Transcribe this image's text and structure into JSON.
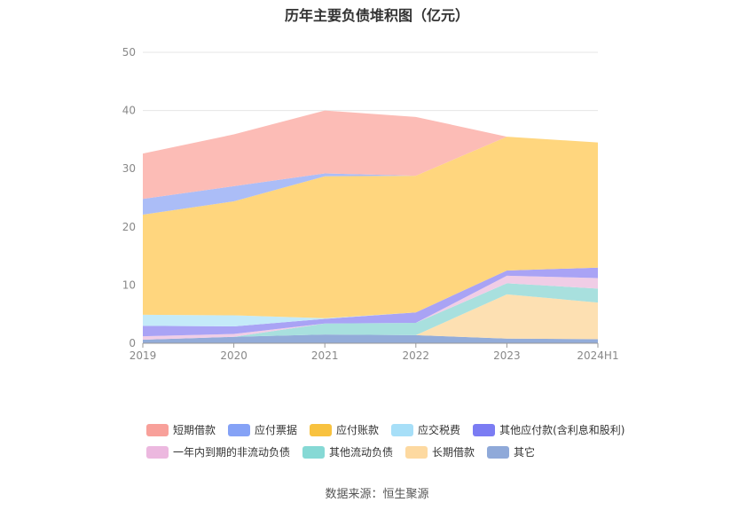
{
  "title": "历年主要负债堆积图（亿元）",
  "source": "数据来源：恒生聚源",
  "chart_data": {
    "type": "area",
    "stacked": true,
    "categories": [
      "2019",
      "2020",
      "2021",
      "2022",
      "2023",
      "2024H1"
    ],
    "yticks": [
      "0",
      "10",
      "20",
      "30",
      "40",
      "50"
    ],
    "ylim": [
      0,
      50
    ],
    "grid": true,
    "legend_position": "bottom",
    "series": [
      {
        "name": "其它",
        "color": "#93acd9",
        "values": [
          0.6,
          1.1,
          1.5,
          1.4,
          0.8,
          0.7
        ]
      },
      {
        "name": "长期借款",
        "color": "#fde0b2",
        "values": [
          0.0,
          0.0,
          0.0,
          0.0,
          7.6,
          6.3
        ]
      },
      {
        "name": "其他流动负债",
        "color": "#a8e0de",
        "values": [
          0.0,
          0.0,
          1.9,
          2.1,
          1.9,
          2.4
        ]
      },
      {
        "name": "一年内到期的非流动负债",
        "color": "#f0cde6",
        "values": [
          0.6,
          0.5,
          0.0,
          0.0,
          1.3,
          1.8
        ]
      },
      {
        "name": "其他应付款(含利息和股利)",
        "color": "#a9a3f5",
        "values": [
          1.8,
          1.3,
          0.8,
          1.8,
          0.9,
          1.8
        ]
      },
      {
        "name": "应交税费",
        "color": "#c4eaf9",
        "values": [
          1.9,
          1.9,
          0.1,
          0.0,
          0.0,
          0.0
        ]
      },
      {
        "name": "应付账款",
        "color": "#ffd67e",
        "values": [
          17.2,
          19.6,
          24.4,
          23.5,
          23.0,
          21.5
        ]
      },
      {
        "name": "应付票据",
        "color": "#abbdf7",
        "values": [
          2.7,
          2.6,
          0.5,
          0.0,
          0.0,
          0.0
        ]
      },
      {
        "name": "短期借款",
        "color": "#fcbcb6",
        "values": [
          7.8,
          8.9,
          10.8,
          10.1,
          0.0,
          0.0
        ]
      }
    ],
    "legend": [
      {
        "name": "短期借款",
        "color": "#f8a09a"
      },
      {
        "name": "应付票据",
        "color": "#85a2f6"
      },
      {
        "name": "应付账款",
        "color": "#f8c23f"
      },
      {
        "name": "应交税费",
        "color": "#a7dff8"
      },
      {
        "name": "其他应付款(含利息和股利)",
        "color": "#7b7cf3"
      },
      {
        "name": "一年内到期的非流动负债",
        "color": "#ecb8df"
      },
      {
        "name": "其他流动负债",
        "color": "#86d9d5"
      },
      {
        "name": "长期借款",
        "color": "#fdd9a0"
      },
      {
        "name": "其它",
        "color": "#8fa9d9"
      }
    ]
  }
}
